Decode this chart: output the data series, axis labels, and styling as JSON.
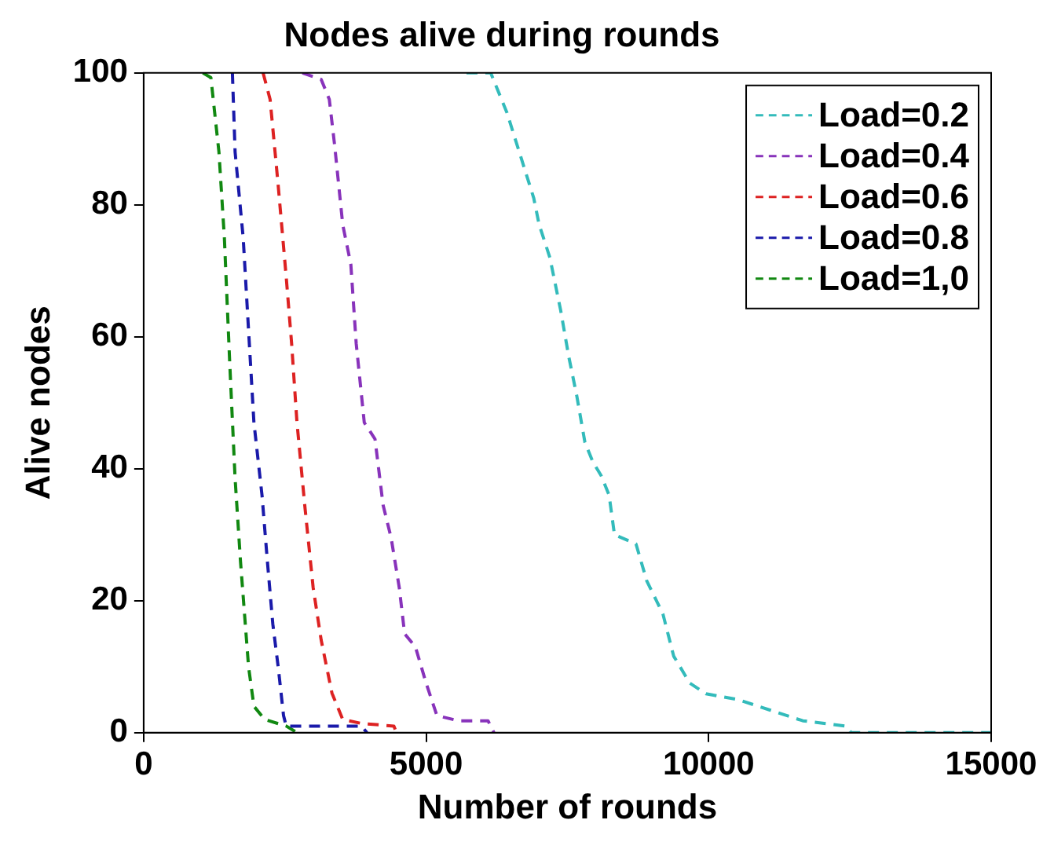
{
  "chart_data": {
    "type": "line",
    "title": "Nodes alive during rounds",
    "xlabel": "Number of rounds",
    "ylabel": "Alive nodes",
    "xlim": [
      0,
      15000
    ],
    "xticks": [
      0,
      5000,
      10000,
      15000
    ],
    "ylim": [
      0,
      100
    ],
    "yticks": [
      0,
      20,
      40,
      60,
      80,
      100
    ],
    "grid": false,
    "legend": "top right",
    "line_style": "dashed",
    "marker": "none",
    "series": [
      {
        "name": "Load=0.2",
        "color": "#33bbbb",
        "x": [
          5714,
          6143,
          6429,
          6667,
          6905,
          7000,
          7190,
          7381,
          7524,
          7667,
          7810,
          7952,
          8095,
          8238,
          8333,
          8714,
          8905,
          9190,
          9381,
          9667,
          9952,
          10524,
          11095,
          11667,
          12429,
          12524,
          15000
        ],
        "values": [
          100,
          100,
          94,
          87.5,
          81,
          77,
          72,
          64,
          57,
          51,
          44,
          41,
          39,
          36,
          30,
          28.6,
          23,
          18,
          11.6,
          7.5,
          5.9,
          5,
          3.4,
          1.8,
          1,
          0,
          0
        ]
      },
      {
        "name": "Load=0.4",
        "color": "#8833bb",
        "x": [
          2810,
          3143,
          3286,
          3381,
          3524,
          3667,
          3762,
          3905,
          4095,
          4238,
          4381,
          4524,
          4619,
          4810,
          5000,
          5190,
          5571,
          6095,
          6200
        ],
        "values": [
          100,
          99,
          96,
          89,
          77,
          71,
          59,
          47,
          44.5,
          34.5,
          29.5,
          22,
          15,
          13,
          7.5,
          2.6,
          1.8,
          1.8,
          0
        ]
      },
      {
        "name": "Load=0.6",
        "color": "#dd2222",
        "x": [
          2114,
          2238,
          2381,
          2524,
          2619,
          2714,
          2857,
          3000,
          3143,
          3333,
          3524,
          3857,
          4429,
          4476
        ],
        "values": [
          100,
          96,
          83,
          69,
          59,
          47,
          34,
          22,
          14,
          6,
          2,
          1.4,
          1,
          0
        ]
      },
      {
        "name": "Load=0.8",
        "color": "#1a1aaa",
        "x": [
          1571,
          1619,
          1762,
          1857,
          1952,
          2095,
          2190,
          2286,
          2381,
          2476,
          2524,
          3857,
          3952
        ],
        "values": [
          100,
          88,
          75,
          61,
          47,
          36,
          26,
          16.5,
          10,
          2.6,
          1,
          1,
          0
        ]
      },
      {
        "name": "Load=1,0",
        "color": "#118811",
        "x": [
          1048,
          1190,
          1333,
          1429,
          1524,
          1619,
          1714,
          1857,
          1952,
          2143,
          2524,
          2714
        ],
        "values": [
          100,
          99.3,
          88,
          75,
          56,
          38.5,
          26,
          10,
          4,
          2,
          1,
          0
        ]
      }
    ]
  }
}
